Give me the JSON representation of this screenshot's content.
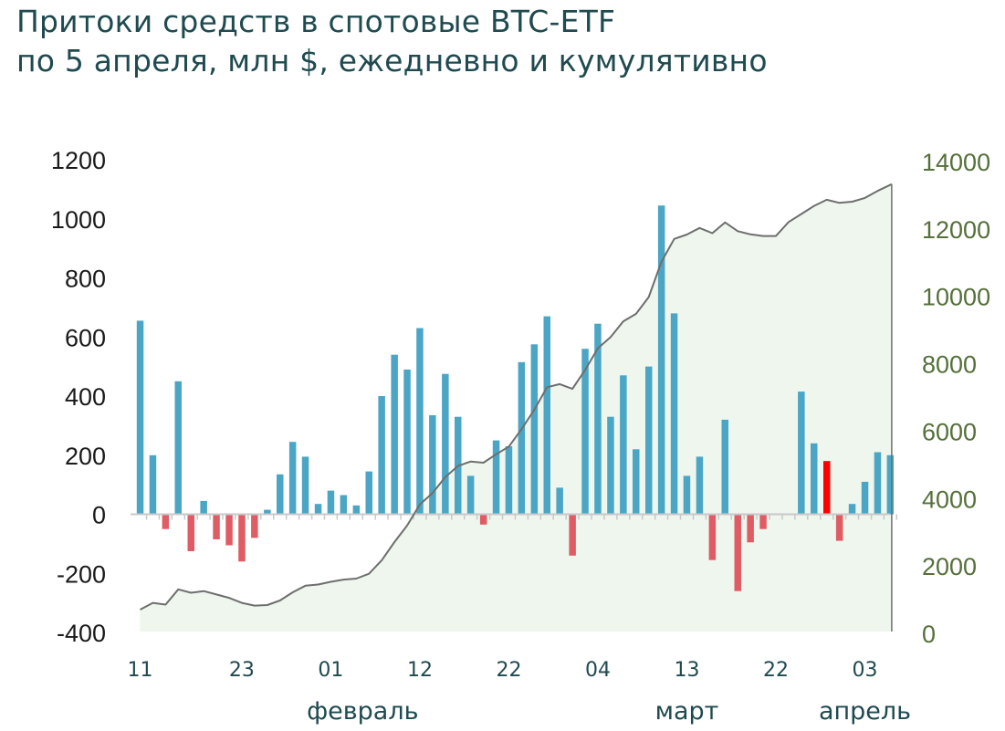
{
  "title_line1": "Притоки средств в спотовые BTC-ETF",
  "title_line2": "по 5 апреля, млн $, ежедневно и кумулятивно",
  "chart_data": {
    "type": "bar",
    "title": "Притоки средств в спотовые BTC-ETF по 5 апреля, млн $, ежедневно и кумулятивно",
    "y_left": {
      "ticks": [
        1200,
        1000,
        800,
        600,
        400,
        200,
        0,
        -200,
        -400
      ],
      "range": [
        -400,
        1200
      ]
    },
    "y_right": {
      "ticks": [
        14000,
        12000,
        10000,
        8000,
        6000,
        4000,
        2000,
        0
      ],
      "range": [
        0,
        14000
      ]
    },
    "x_tick_labels": [
      "11",
      "23",
      "01",
      "12",
      "22",
      "04",
      "13",
      "22",
      "03"
    ],
    "x_tick_indices": [
      0,
      8,
      15,
      22,
      29,
      36,
      43,
      50,
      57
    ],
    "month_labels": [
      "февраль",
      "март",
      "апрель"
    ],
    "month_label_indices": [
      17.5,
      43,
      57
    ],
    "colors": {
      "inflow": "#4ba6c6",
      "outflow": "#e05c64",
      "highlight": "#ff0000",
      "cumulative_line": "#6e6e6e",
      "cumulative_fill": "#eef6ee"
    },
    "highlight_index": 54,
    "series": [
      {
        "kind": "bars",
        "axis": "left",
        "values": [
          655,
          200,
          -50,
          450,
          -125,
          45,
          -85,
          -105,
          -160,
          -80,
          15,
          135,
          245,
          195,
          35,
          80,
          65,
          30,
          145,
          400,
          540,
          490,
          630,
          335,
          475,
          330,
          130,
          -35,
          250,
          230,
          515,
          575,
          670,
          90,
          -140,
          560,
          645,
          330,
          470,
          220,
          500,
          1045,
          680,
          130,
          195,
          -155,
          320,
          -260,
          -95,
          -50,
          0,
          0,
          415,
          240,
          180,
          -90,
          35,
          110,
          210,
          200
        ]
      },
      {
        "kind": "area-line",
        "axis": "right",
        "values": [
          650,
          850,
          800,
          1250,
          1150,
          1200,
          1100,
          1000,
          850,
          770,
          785,
          920,
          1165,
          1360,
          1395,
          1475,
          1540,
          1570,
          1715,
          2115,
          2655,
          3145,
          3775,
          4110,
          4585,
          4915,
          5045,
          5010,
          5260,
          5490,
          6005,
          6580,
          7250,
          7340,
          7200,
          7760,
          8405,
          8735,
          9205,
          9425,
          9925,
          10970,
          11650,
          11780,
          11975,
          11820,
          12140,
          11880,
          11785,
          11735,
          11735,
          12150,
          12390,
          12630,
          12810,
          12720,
          12755,
          12865,
          13075,
          13275
        ]
      }
    ]
  }
}
